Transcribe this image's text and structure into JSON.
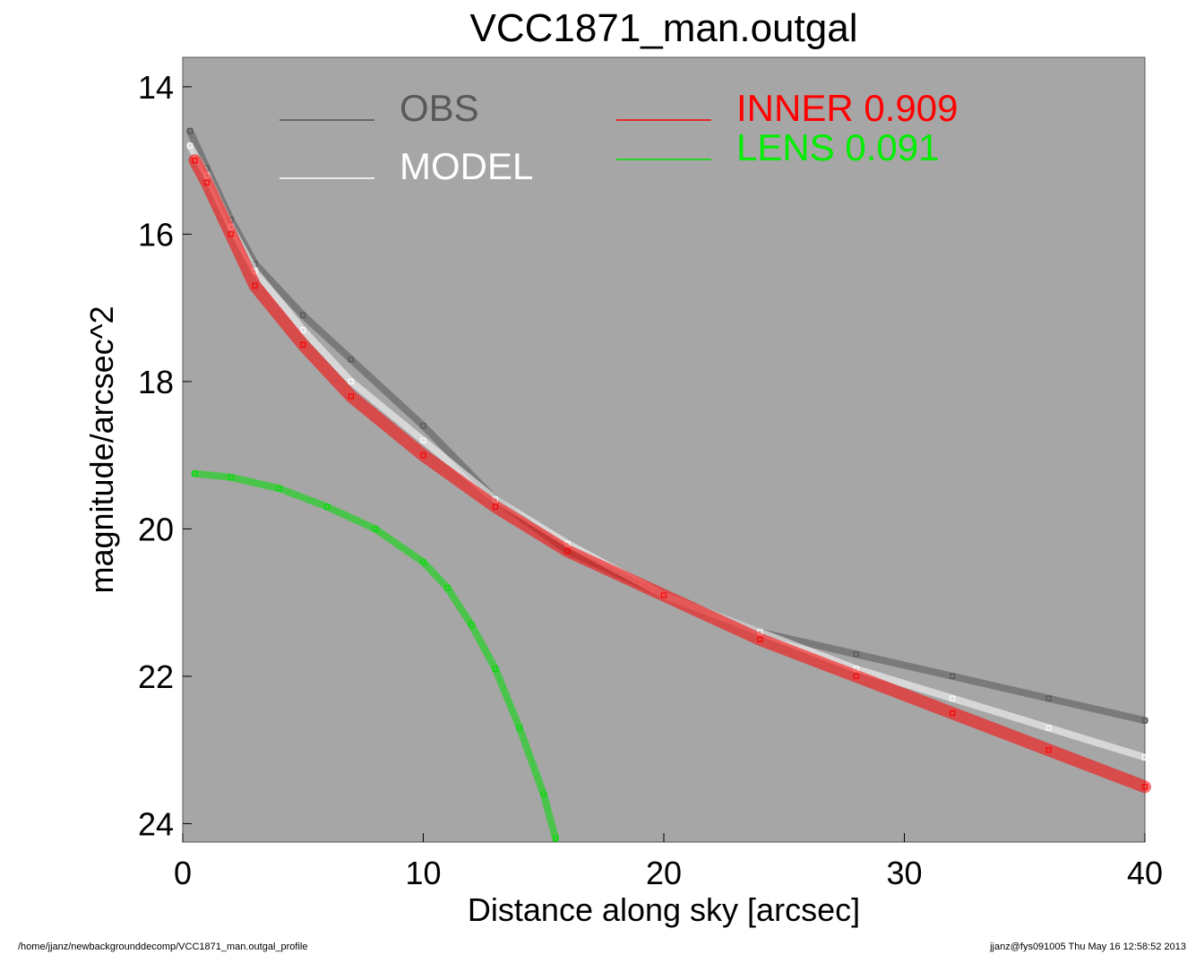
{
  "chart_data": {
    "type": "scatter",
    "title": "VCC1871_man.outgal",
    "xlabel": "Distance along sky [arcsec]",
    "ylabel": "magnitude/arcsec^2",
    "xlim": [
      0,
      40
    ],
    "ylim": [
      24.25,
      13.6
    ],
    "y_inverted": true,
    "xticks": [
      "0",
      "10",
      "20",
      "30",
      "40"
    ],
    "yticks": [
      "14",
      "16",
      "18",
      "20",
      "22",
      "24"
    ],
    "background": "#a6a6a6",
    "legend_placement": "top",
    "legend": [
      {
        "key": "obs",
        "label": "OBS",
        "color": "#555555",
        "text_color": "#595959"
      },
      {
        "key": "model",
        "label": "MODEL",
        "color": "#ffffff",
        "text_color": "#ffffff"
      },
      {
        "key": "inner",
        "label": "INNER  0.909",
        "color": "#ff0000",
        "text_color": "#ff0000"
      },
      {
        "key": "lens",
        "label": "LENS  0.091",
        "color": "#00dd00",
        "text_color": "#00ee00"
      }
    ],
    "series": [
      {
        "key": "obs",
        "name": "OBS",
        "color": "#555555",
        "x": [
          0.3,
          1,
          2,
          3,
          5,
          7,
          10,
          13,
          16,
          20,
          24,
          28,
          32,
          36,
          40
        ],
        "y": [
          14.6,
          15.1,
          15.8,
          16.4,
          17.1,
          17.7,
          18.6,
          19.6,
          20.3,
          20.9,
          21.4,
          21.7,
          22.0,
          22.3,
          22.6
        ]
      },
      {
        "key": "model",
        "name": "MODEL",
        "color": "#ffffff",
        "x": [
          0.3,
          1,
          2,
          3,
          5,
          7,
          10,
          13,
          16,
          20,
          24,
          28,
          32,
          36,
          40
        ],
        "y": [
          14.8,
          15.2,
          15.9,
          16.5,
          17.3,
          18.0,
          18.8,
          19.6,
          20.2,
          20.9,
          21.4,
          21.9,
          22.3,
          22.7,
          23.1
        ]
      },
      {
        "key": "inner",
        "name": "INNER",
        "color": "#ff0000",
        "x": [
          0.5,
          1,
          2,
          3,
          5,
          7,
          10,
          13,
          16,
          20,
          24,
          28,
          32,
          36,
          40
        ],
        "y": [
          15.0,
          15.3,
          16.0,
          16.7,
          17.5,
          18.2,
          19.0,
          19.7,
          20.3,
          20.9,
          21.5,
          22.0,
          22.5,
          23.0,
          23.5
        ]
      },
      {
        "key": "lens",
        "name": "LENS",
        "color": "#00dd00",
        "x": [
          0.5,
          2,
          4,
          6,
          8,
          10,
          11,
          12,
          13,
          14,
          15,
          15.5
        ],
        "y": [
          19.25,
          19.3,
          19.45,
          19.7,
          20.0,
          20.45,
          20.8,
          21.3,
          21.9,
          22.7,
          23.6,
          24.2
        ]
      }
    ]
  },
  "footer": {
    "left": "/home/jjanz/newbackgrounddecomp/VCC1871_man.outgal_profile",
    "right": "jjanz@fys091005  Thu May 16 12:58:52 2013"
  }
}
